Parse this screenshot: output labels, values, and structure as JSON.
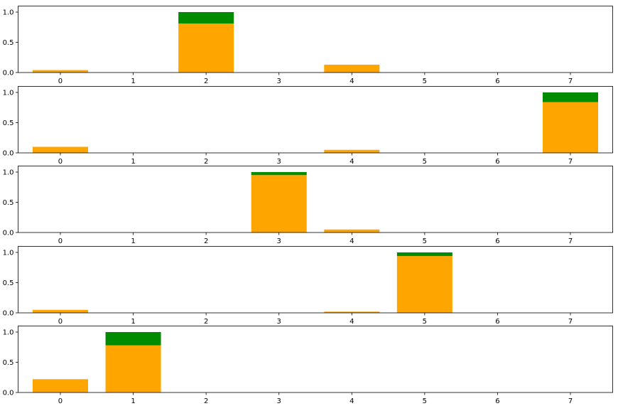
{
  "colors": {
    "base": "#ffa500",
    "top": "#008b00",
    "axis": "#000000"
  },
  "chart_data": [
    {
      "type": "bar",
      "stacked": true,
      "categories": [
        "0",
        "1",
        "2",
        "3",
        "4",
        "5",
        "6",
        "7"
      ],
      "series": [
        {
          "values": [
            0.04,
            0,
            0.81,
            0,
            0.13,
            0,
            0,
            0
          ]
        },
        {
          "values": [
            0,
            0,
            0.19,
            0,
            0,
            0,
            0,
            0
          ]
        }
      ],
      "yticks": [
        "0.0",
        "0.5",
        "1.0"
      ],
      "ylim": [
        0,
        1.1
      ]
    },
    {
      "type": "bar",
      "stacked": true,
      "categories": [
        "0",
        "1",
        "2",
        "3",
        "4",
        "5",
        "6",
        "7"
      ],
      "series": [
        {
          "values": [
            0.1,
            0,
            0,
            0,
            0.05,
            0,
            0,
            0.84
          ]
        },
        {
          "values": [
            0,
            0,
            0,
            0,
            0,
            0,
            0,
            0.16
          ]
        }
      ],
      "yticks": [
        "0.0",
        "0.5",
        "1.0"
      ],
      "ylim": [
        0,
        1.1
      ]
    },
    {
      "type": "bar",
      "stacked": true,
      "categories": [
        "0",
        "1",
        "2",
        "3",
        "4",
        "5",
        "6",
        "7"
      ],
      "series": [
        {
          "values": [
            0,
            0,
            0,
            0.95,
            0.05,
            0,
            0,
            0
          ]
        },
        {
          "values": [
            0,
            0,
            0,
            0.05,
            0,
            0,
            0,
            0
          ]
        }
      ],
      "yticks": [
        "0.0",
        "0.5",
        "1.0"
      ],
      "ylim": [
        0,
        1.1
      ]
    },
    {
      "type": "bar",
      "stacked": true,
      "categories": [
        "0",
        "1",
        "2",
        "3",
        "4",
        "5",
        "6",
        "7"
      ],
      "series": [
        {
          "values": [
            0.05,
            0,
            0,
            0,
            0.02,
            0.94,
            0,
            0
          ]
        },
        {
          "values": [
            0,
            0,
            0,
            0,
            0,
            0.06,
            0,
            0
          ]
        }
      ],
      "yticks": [
        "0.0",
        "0.5",
        "1.0"
      ],
      "ylim": [
        0,
        1.1
      ]
    },
    {
      "type": "bar",
      "stacked": true,
      "categories": [
        "0",
        "1",
        "2",
        "3",
        "4",
        "5",
        "6",
        "7"
      ],
      "series": [
        {
          "values": [
            0.22,
            0.78,
            0,
            0,
            0,
            0,
            0,
            0
          ]
        },
        {
          "values": [
            0,
            0.22,
            0,
            0,
            0,
            0,
            0,
            0
          ]
        }
      ],
      "yticks": [
        "0.0",
        "0.5",
        "1.0"
      ],
      "ylim": [
        0,
        1.1
      ]
    }
  ]
}
